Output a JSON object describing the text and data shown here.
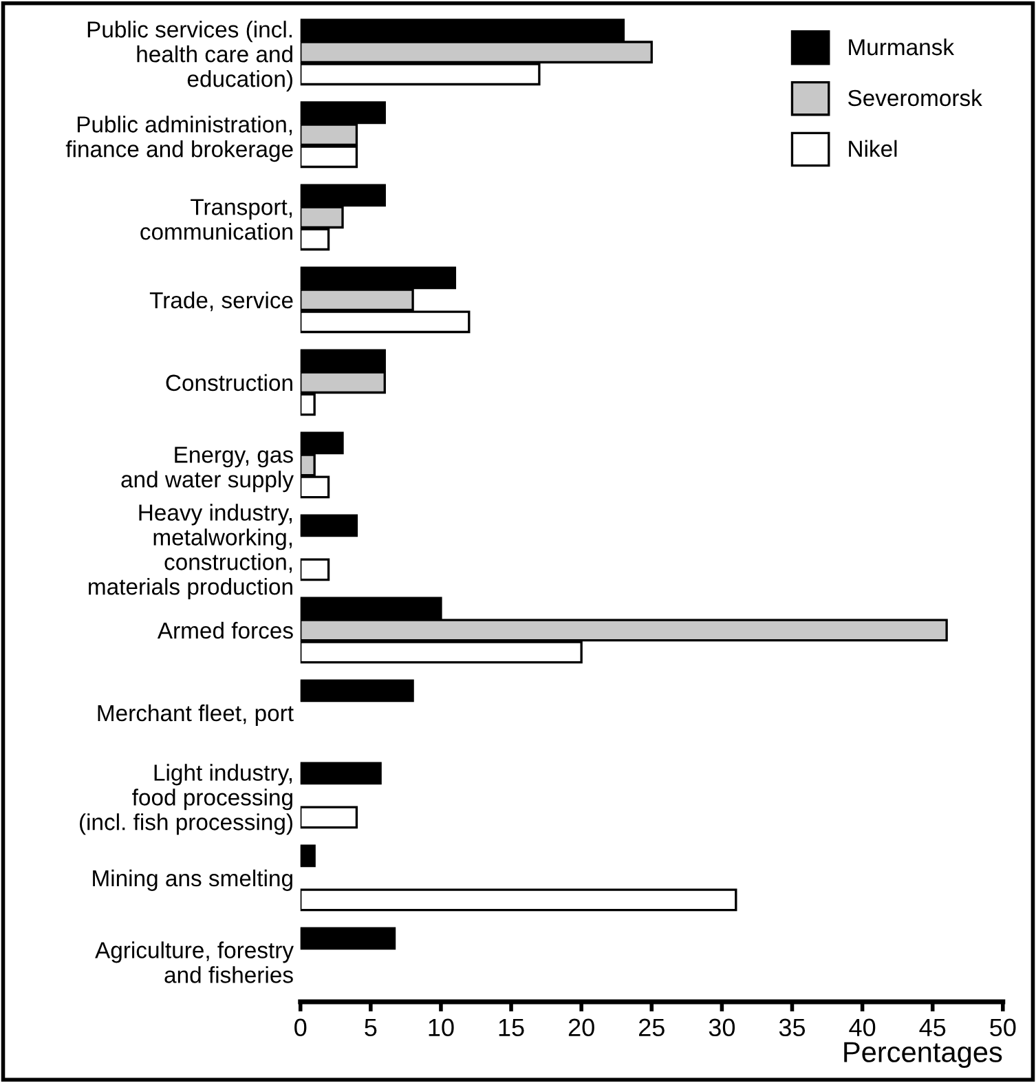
{
  "chart_data": {
    "type": "bar",
    "orientation": "horizontal",
    "xlabel": "Percentages",
    "categories": [
      "Public services (incl.\nhealth care and\neducation)",
      "Public administration,\nfinance and brokerage",
      "Transport,\ncommunication",
      "Trade, service",
      "Construction",
      "Energy, gas\nand water supply",
      "Heavy industry,\nmetalworking,\nconstruction,\nmaterials production",
      "Armed forces",
      "Merchant fleet, port",
      "Light industry,\nfood processing\n(incl. fish processing)",
      "Mining ans smelting",
      "Agriculture, forestry\nand fisheries"
    ],
    "series": [
      {
        "name": "Murmansk",
        "color": "#000000",
        "values": [
          23,
          6,
          6,
          11,
          6,
          3,
          4,
          10,
          8,
          5.7,
          1,
          6.7
        ]
      },
      {
        "name": "Severomorsk",
        "color": "#c8c8c8",
        "values": [
          25,
          4,
          3,
          8,
          6,
          1,
          null,
          46,
          null,
          null,
          null,
          null
        ]
      },
      {
        "name": "Nikel",
        "color": "#ffffff",
        "values": [
          17,
          4,
          2,
          12,
          1,
          2,
          2,
          20,
          null,
          4,
          31,
          null
        ]
      }
    ],
    "xlim": [
      0,
      50
    ],
    "xticks": [
      0,
      5,
      10,
      15,
      20,
      25,
      30,
      35,
      40,
      45,
      50
    ],
    "grid": false,
    "legend": "top right"
  }
}
